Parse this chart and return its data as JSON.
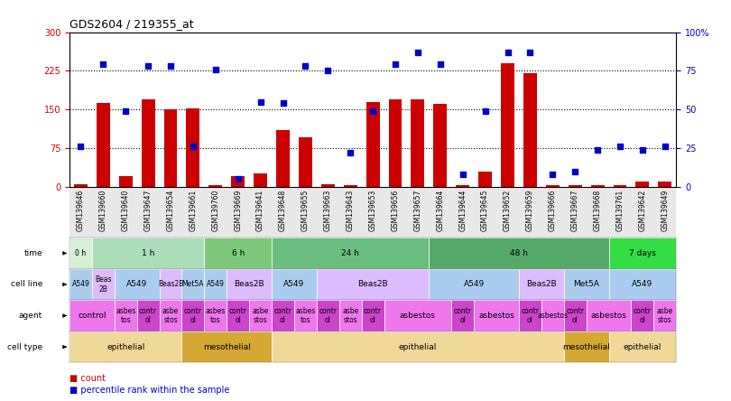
{
  "title": "GDS2604 / 219355_at",
  "sample_ids": [
    "GSM139646",
    "GSM139660",
    "GSM139640",
    "GSM139647",
    "GSM139654",
    "GSM139661",
    "GSM139760",
    "GSM139669",
    "GSM139641",
    "GSM139648",
    "GSM139655",
    "GSM139663",
    "GSM139643",
    "GSM139653",
    "GSM139656",
    "GSM139657",
    "GSM139664",
    "GSM139644",
    "GSM139645",
    "GSM139652",
    "GSM139659",
    "GSM139666",
    "GSM139667",
    "GSM139668",
    "GSM139761",
    "GSM139642",
    "GSM139649"
  ],
  "counts": [
    5,
    163,
    20,
    170,
    150,
    152,
    2,
    20,
    25,
    110,
    95,
    5,
    2,
    165,
    170,
    170,
    160,
    2,
    30,
    240,
    220,
    2,
    2,
    2,
    2,
    10,
    10
  ],
  "percentile_ranks": [
    26,
    79,
    49,
    78,
    78,
    26,
    76,
    5,
    55,
    54,
    78,
    75,
    22,
    49,
    79,
    87,
    79,
    8,
    49,
    87,
    87,
    8,
    10,
    24,
    26,
    24,
    26
  ],
  "bar_color": "#cc0000",
  "dot_color": "#0000cc",
  "yticks_left": [
    0,
    75,
    150,
    225,
    300
  ],
  "ytick_labels_left": [
    "0",
    "75",
    "150",
    "225",
    "300"
  ],
  "yticks_right": [
    0,
    25,
    50,
    75,
    100
  ],
  "ytick_labels_right": [
    "0",
    "25",
    "50",
    "75",
    "100%"
  ],
  "hlines": [
    75,
    150,
    225
  ],
  "time_groups": [
    {
      "text": "0 h",
      "start": 0,
      "end": 1,
      "color": "#d5f0d5"
    },
    {
      "text": "1 h",
      "start": 1,
      "end": 6,
      "color": "#aaddb8"
    },
    {
      "text": "6 h",
      "start": 6,
      "end": 9,
      "color": "#7dc87a"
    },
    {
      "text": "24 h",
      "start": 9,
      "end": 16,
      "color": "#6abf80"
    },
    {
      "text": "48 h",
      "start": 16,
      "end": 24,
      "color": "#55aa6a"
    },
    {
      "text": "7 days",
      "start": 24,
      "end": 27,
      "color": "#33dd44"
    }
  ],
  "cellline_groups": [
    {
      "text": "A549",
      "start": 0,
      "end": 1,
      "color": "#aaccee"
    },
    {
      "text": "Beas\n2B",
      "start": 1,
      "end": 2,
      "color": "#ddbbff"
    },
    {
      "text": "A549",
      "start": 2,
      "end": 4,
      "color": "#aaccee"
    },
    {
      "text": "Beas2B",
      "start": 4,
      "end": 5,
      "color": "#ddbbff"
    },
    {
      "text": "Met5A",
      "start": 5,
      "end": 6,
      "color": "#aaccee"
    },
    {
      "text": "A549",
      "start": 6,
      "end": 7,
      "color": "#aaccee"
    },
    {
      "text": "Beas2B",
      "start": 7,
      "end": 9,
      "color": "#ddbbff"
    },
    {
      "text": "A549",
      "start": 9,
      "end": 11,
      "color": "#aaccee"
    },
    {
      "text": "Beas2B",
      "start": 11,
      "end": 16,
      "color": "#ddbbff"
    },
    {
      "text": "A549",
      "start": 16,
      "end": 20,
      "color": "#aaccee"
    },
    {
      "text": "Beas2B",
      "start": 20,
      "end": 22,
      "color": "#ddbbff"
    },
    {
      "text": "Met5A",
      "start": 22,
      "end": 24,
      "color": "#aaccee"
    },
    {
      "text": "A549",
      "start": 24,
      "end": 27,
      "color": "#aaccee"
    }
  ],
  "agent_groups": [
    {
      "text": "control",
      "start": 0,
      "end": 2,
      "color": "#ee77ee"
    },
    {
      "text": "asbes\ntos",
      "start": 2,
      "end": 3,
      "color": "#ee77ee"
    },
    {
      "text": "contr\nol",
      "start": 3,
      "end": 4,
      "color": "#cc44cc"
    },
    {
      "text": "asbe\nstos",
      "start": 4,
      "end": 5,
      "color": "#ee77ee"
    },
    {
      "text": "contr\nol",
      "start": 5,
      "end": 6,
      "color": "#cc44cc"
    },
    {
      "text": "asbes\ntos",
      "start": 6,
      "end": 7,
      "color": "#ee77ee"
    },
    {
      "text": "contr\nol",
      "start": 7,
      "end": 8,
      "color": "#cc44cc"
    },
    {
      "text": "asbe\nstos",
      "start": 8,
      "end": 9,
      "color": "#ee77ee"
    },
    {
      "text": "contr\nol",
      "start": 9,
      "end": 10,
      "color": "#cc44cc"
    },
    {
      "text": "asbes\ntos",
      "start": 10,
      "end": 11,
      "color": "#ee77ee"
    },
    {
      "text": "contr\nol",
      "start": 11,
      "end": 12,
      "color": "#cc44cc"
    },
    {
      "text": "asbe\nstos",
      "start": 12,
      "end": 13,
      "color": "#ee77ee"
    },
    {
      "text": "contr\nol",
      "start": 13,
      "end": 14,
      "color": "#cc44cc"
    },
    {
      "text": "asbestos",
      "start": 14,
      "end": 17,
      "color": "#ee77ee"
    },
    {
      "text": "contr\nol",
      "start": 17,
      "end": 18,
      "color": "#cc44cc"
    },
    {
      "text": "asbestos",
      "start": 18,
      "end": 20,
      "color": "#ee77ee"
    },
    {
      "text": "contr\nol",
      "start": 20,
      "end": 21,
      "color": "#cc44cc"
    },
    {
      "text": "asbestos",
      "start": 21,
      "end": 22,
      "color": "#ee77ee"
    },
    {
      "text": "contr\nol",
      "start": 22,
      "end": 23,
      "color": "#cc44cc"
    },
    {
      "text": "asbestos",
      "start": 23,
      "end": 25,
      "color": "#ee77ee"
    },
    {
      "text": "contr\nol",
      "start": 25,
      "end": 26,
      "color": "#cc44cc"
    },
    {
      "text": "asbe\nstos",
      "start": 26,
      "end": 27,
      "color": "#ee77ee"
    }
  ],
  "celltype_groups": [
    {
      "text": "epithelial",
      "start": 0,
      "end": 5,
      "color": "#f0d898"
    },
    {
      "text": "mesothelial",
      "start": 5,
      "end": 9,
      "color": "#d4a832"
    },
    {
      "text": "epithelial",
      "start": 9,
      "end": 22,
      "color": "#f0d898"
    },
    {
      "text": "mesothelial",
      "start": 22,
      "end": 24,
      "color": "#d4a832"
    },
    {
      "text": "epithelial",
      "start": 24,
      "end": 27,
      "color": "#f0d898"
    }
  ],
  "row_labels": [
    "time",
    "cell line",
    "agent",
    "cell type"
  ],
  "legend_count_color": "#cc0000",
  "legend_pct_color": "#0000cc"
}
